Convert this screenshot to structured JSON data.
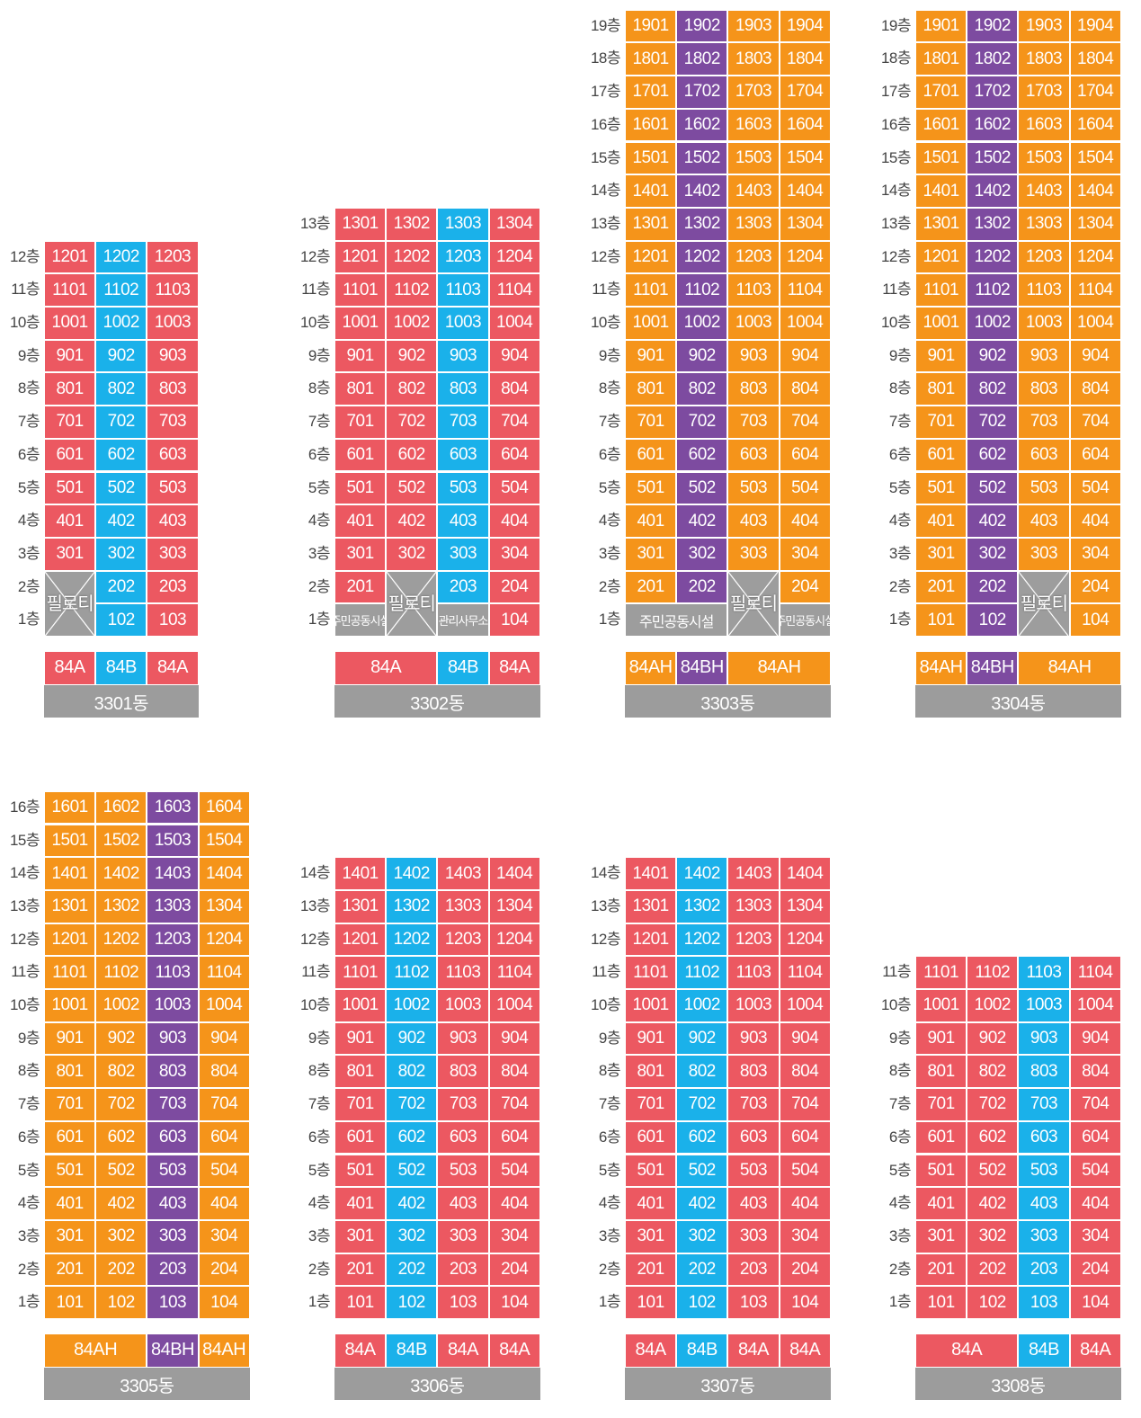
{
  "colors": {
    "84A": "#ec5861",
    "84B": "#1ab1ea",
    "84AH": "#f5941a",
    "84BH": "#7d4ba0",
    "facility": "#9d9d9d",
    "building_bar": "#9c9c9c"
  },
  "floor_suffix": "층",
  "buildings": [
    {
      "name": "3301동",
      "floors": 12,
      "columns": [
        {
          "unit": 1,
          "type": "84A"
        },
        {
          "unit": 2,
          "type": "84B"
        },
        {
          "unit": 3,
          "type": "84A"
        }
      ],
      "type_bar": [
        {
          "label": "84A",
          "type": "84A",
          "span": 1
        },
        {
          "label": "84B",
          "type": "84B",
          "span": 1
        },
        {
          "label": "84A",
          "type": "84A",
          "span": 1
        }
      ],
      "special": [
        {
          "floors": [
            1,
            2
          ],
          "cols": [
            1
          ],
          "label": "필로티",
          "kind": "piloti"
        }
      ]
    },
    {
      "name": "3302동",
      "floors": 13,
      "columns": [
        {
          "unit": 1,
          "type": "84A"
        },
        {
          "unit": 2,
          "type": "84A"
        },
        {
          "unit": 3,
          "type": "84B"
        },
        {
          "unit": 4,
          "type": "84A"
        }
      ],
      "type_bar": [
        {
          "label": "84A",
          "type": "84A",
          "span": 2
        },
        {
          "label": "84B",
          "type": "84B",
          "span": 1
        },
        {
          "label": "84A",
          "type": "84A",
          "span": 1
        }
      ],
      "special": [
        {
          "floors": [
            1
          ],
          "cols": [
            1
          ],
          "label": "주민공동시설",
          "kind": "facility"
        },
        {
          "floors": [
            1,
            2
          ],
          "cols": [
            2
          ],
          "label": "필로티",
          "kind": "piloti"
        },
        {
          "floors": [
            1
          ],
          "cols": [
            3
          ],
          "label": "관리사무소",
          "kind": "facility"
        }
      ]
    },
    {
      "name": "3303동",
      "floors": 19,
      "columns": [
        {
          "unit": 1,
          "type": "84AH"
        },
        {
          "unit": 2,
          "type": "84BH"
        },
        {
          "unit": 3,
          "type": "84AH"
        },
        {
          "unit": 4,
          "type": "84AH"
        }
      ],
      "type_bar": [
        {
          "label": "84AH",
          "type": "84AH",
          "span": 1
        },
        {
          "label": "84BH",
          "type": "84BH",
          "span": 1
        },
        {
          "label": "84AH",
          "type": "84AH",
          "span": 2
        }
      ],
      "special": [
        {
          "floors": [
            1
          ],
          "cols": [
            1,
            2
          ],
          "label": "주민공동시설",
          "kind": "facility"
        },
        {
          "floors": [
            1,
            2
          ],
          "cols": [
            3
          ],
          "label": "필로티",
          "kind": "piloti"
        },
        {
          "floors": [
            1
          ],
          "cols": [
            4
          ],
          "label": "주민공동시설",
          "kind": "facility"
        }
      ]
    },
    {
      "name": "3304동",
      "floors": 19,
      "columns": [
        {
          "unit": 1,
          "type": "84AH"
        },
        {
          "unit": 2,
          "type": "84BH"
        },
        {
          "unit": 3,
          "type": "84AH"
        },
        {
          "unit": 4,
          "type": "84AH"
        }
      ],
      "type_bar": [
        {
          "label": "84AH",
          "type": "84AH",
          "span": 1
        },
        {
          "label": "84BH",
          "type": "84BH",
          "span": 1
        },
        {
          "label": "84AH",
          "type": "84AH",
          "span": 2
        }
      ],
      "special": [
        {
          "floors": [
            1,
            2
          ],
          "cols": [
            3
          ],
          "label": "필로티",
          "kind": "piloti"
        }
      ]
    },
    {
      "name": "3305동",
      "floors": 16,
      "columns": [
        {
          "unit": 1,
          "type": "84AH"
        },
        {
          "unit": 2,
          "type": "84AH"
        },
        {
          "unit": 3,
          "type": "84BH"
        },
        {
          "unit": 4,
          "type": "84AH"
        }
      ],
      "type_bar": [
        {
          "label": "84AH",
          "type": "84AH",
          "span": 2
        },
        {
          "label": "84BH",
          "type": "84BH",
          "span": 1
        },
        {
          "label": "84AH",
          "type": "84AH",
          "span": 1
        }
      ],
      "special": []
    },
    {
      "name": "3306동",
      "floors": 14,
      "columns": [
        {
          "unit": 1,
          "type": "84A"
        },
        {
          "unit": 2,
          "type": "84B"
        },
        {
          "unit": 3,
          "type": "84A"
        },
        {
          "unit": 4,
          "type": "84A"
        }
      ],
      "type_bar": [
        {
          "label": "84A",
          "type": "84A",
          "span": 1
        },
        {
          "label": "84B",
          "type": "84B",
          "span": 1
        },
        {
          "label": "84A",
          "type": "84A",
          "span": 1
        },
        {
          "label": "84A",
          "type": "84A",
          "span": 1
        }
      ],
      "special": []
    },
    {
      "name": "3307동",
      "floors": 14,
      "columns": [
        {
          "unit": 1,
          "type": "84A"
        },
        {
          "unit": 2,
          "type": "84B"
        },
        {
          "unit": 3,
          "type": "84A"
        },
        {
          "unit": 4,
          "type": "84A"
        }
      ],
      "type_bar": [
        {
          "label": "84A",
          "type": "84A",
          "span": 1
        },
        {
          "label": "84B",
          "type": "84B",
          "span": 1
        },
        {
          "label": "84A",
          "type": "84A",
          "span": 1
        },
        {
          "label": "84A",
          "type": "84A",
          "span": 1
        }
      ],
      "special": []
    },
    {
      "name": "3308동",
      "floors": 11,
      "columns": [
        {
          "unit": 1,
          "type": "84A"
        },
        {
          "unit": 2,
          "type": "84A"
        },
        {
          "unit": 3,
          "type": "84B"
        },
        {
          "unit": 4,
          "type": "84A"
        }
      ],
      "type_bar": [
        {
          "label": "84A",
          "type": "84A",
          "span": 2
        },
        {
          "label": "84B",
          "type": "84B",
          "span": 1
        },
        {
          "label": "84A",
          "type": "84A",
          "span": 1
        }
      ],
      "special": []
    }
  ]
}
